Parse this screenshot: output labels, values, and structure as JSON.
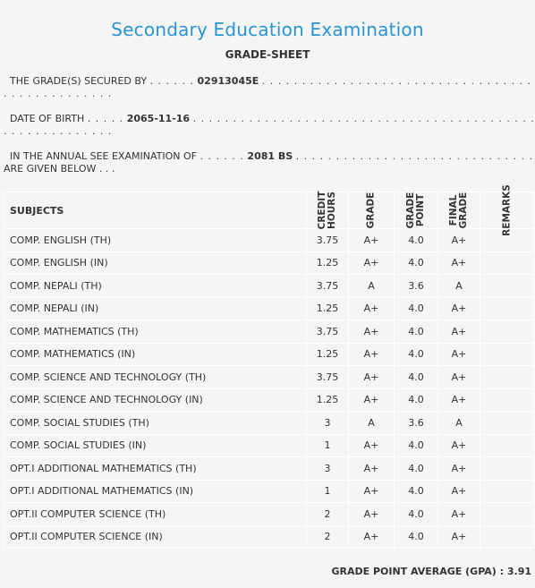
{
  "header": {
    "title": "Secondary Education Examination",
    "subtitle": "GRADE-SHEET"
  },
  "info": {
    "secured_by_label": "THE GRADE(S) SECURED BY",
    "symbol_no": "02913045E",
    "dob_label": "DATE OF BIRTH",
    "dob": "2065-11-16",
    "exam_label": "IN THE ANNUAL SEE EXAMINATION OF",
    "exam_year": "2081 BS",
    "given_below": "ARE GIVEN BELOW . . ."
  },
  "table": {
    "headers": {
      "subjects": "SUBJECTS",
      "credit_hours_1": "CREDIT",
      "credit_hours_2": "HOURS",
      "grade": "GRADE",
      "grade_point_1": "GRADE",
      "grade_point_2": "POINT",
      "final_grade_1": "FINAL",
      "final_grade_2": "GRADE",
      "remarks": "REMARKS"
    },
    "rows": [
      {
        "subject": "COMP. ENGLISH (TH)",
        "credit": "3.75",
        "grade": "A+",
        "point": "4.0",
        "final": "A+"
      },
      {
        "subject": "COMP. ENGLISH (IN)",
        "credit": "1.25",
        "grade": "A+",
        "point": "4.0",
        "final": "A+"
      },
      {
        "subject": "COMP. NEPALI (TH)",
        "credit": "3.75",
        "grade": "A",
        "point": "3.6",
        "final": "A"
      },
      {
        "subject": "COMP. NEPALI (IN)",
        "credit": "1.25",
        "grade": "A+",
        "point": "4.0",
        "final": "A+"
      },
      {
        "subject": "COMP. MATHEMATICS (TH)",
        "credit": "3.75",
        "grade": "A+",
        "point": "4.0",
        "final": "A+"
      },
      {
        "subject": "COMP. MATHEMATICS (IN)",
        "credit": "1.25",
        "grade": "A+",
        "point": "4.0",
        "final": "A+"
      },
      {
        "subject": "COMP. SCIENCE AND TECHNOLOGY (TH)",
        "credit": "3.75",
        "grade": "A+",
        "point": "4.0",
        "final": "A+"
      },
      {
        "subject": "COMP. SCIENCE AND TECHNOLOGY (IN)",
        "credit": "1.25",
        "grade": "A+",
        "point": "4.0",
        "final": "A+"
      },
      {
        "subject": "COMP. SOCIAL STUDIES (TH)",
        "credit": "3",
        "grade": "A",
        "point": "3.6",
        "final": "A"
      },
      {
        "subject": "COMP. SOCIAL STUDIES (IN)",
        "credit": "1",
        "grade": "A+",
        "point": "4.0",
        "final": "A+"
      },
      {
        "subject": "OPT.I ADDITIONAL MATHEMATICS (TH)",
        "credit": "3",
        "grade": "A+",
        "point": "4.0",
        "final": "A+"
      },
      {
        "subject": "OPT.I ADDITIONAL MATHEMATICS (IN)",
        "credit": "1",
        "grade": "A+",
        "point": "4.0",
        "final": "A+"
      },
      {
        "subject": "OPT.II COMPUTER SCIENCE (TH)",
        "credit": "2",
        "grade": "A+",
        "point": "4.0",
        "final": "A+"
      },
      {
        "subject": "OPT.II COMPUTER SCIENCE (IN)",
        "credit": "2",
        "grade": "A+",
        "point": "4.0",
        "final": "A+"
      }
    ]
  },
  "gpa": {
    "label": "GRADE POINT AVERAGE (GPA) :",
    "value": "3.91"
  },
  "colors": {
    "title": "#2a93d5",
    "background": "#f5f5f5",
    "text": "#333333"
  }
}
